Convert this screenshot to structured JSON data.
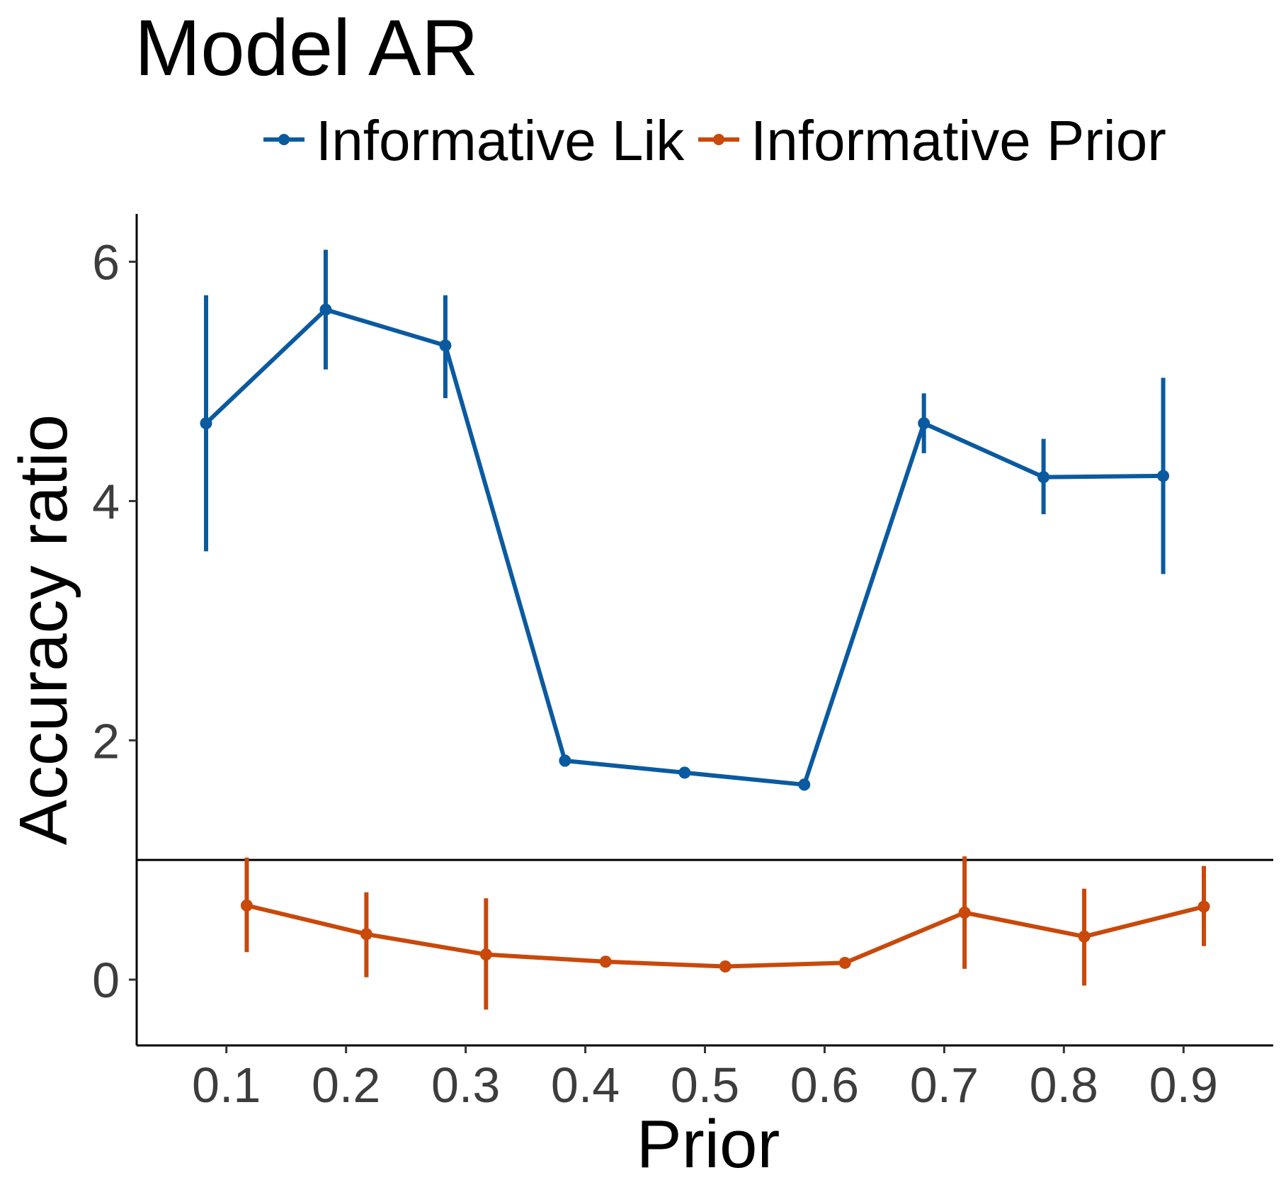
{
  "chart_data": {
    "type": "line",
    "title": "Model AR",
    "xlabel": "Prior",
    "ylabel": "Accuracy ratio",
    "categories": [
      "0.1",
      "0.2",
      "0.3",
      "0.4",
      "0.5",
      "0.6",
      "0.7",
      "0.8",
      "0.9"
    ],
    "yticks": [
      "0",
      "2",
      "4",
      "6"
    ],
    "ylim": [
      -0.55,
      6.4
    ],
    "reference_line": 1,
    "legend_position": "top",
    "grid": false,
    "series": [
      {
        "name": "Informative Lik",
        "color": "#0a5aa0",
        "x": [
          0.1,
          0.2,
          0.3,
          0.4,
          0.5,
          0.6,
          0.7,
          0.8,
          0.9
        ],
        "values": [
          4.65,
          5.6,
          5.3,
          1.83,
          1.73,
          1.63,
          4.65,
          4.2,
          4.21
        ],
        "lower": [
          3.58,
          5.1,
          4.86,
          1.78,
          1.72,
          1.58,
          4.4,
          3.89,
          3.39
        ],
        "upper": [
          5.72,
          6.1,
          5.72,
          1.88,
          1.74,
          1.68,
          4.9,
          4.52,
          5.03
        ]
      },
      {
        "name": "Informative Prior",
        "color": "#c9480a",
        "x": [
          0.1,
          0.2,
          0.3,
          0.4,
          0.5,
          0.6,
          0.7,
          0.8,
          0.9
        ],
        "values": [
          0.62,
          0.38,
          0.21,
          0.15,
          0.11,
          0.14,
          0.56,
          0.36,
          0.61
        ],
        "lower": [
          0.23,
          0.02,
          -0.25,
          0.14,
          0.1,
          0.13,
          0.09,
          -0.05,
          0.28
        ],
        "upper": [
          1.02,
          0.73,
          0.68,
          0.16,
          0.12,
          0.15,
          1.03,
          0.76,
          0.95
        ]
      }
    ]
  }
}
